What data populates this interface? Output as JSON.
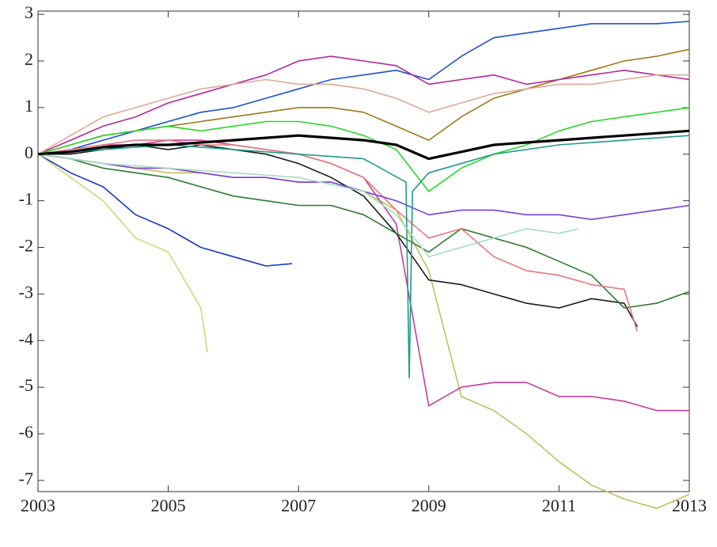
{
  "chart_data": {
    "type": "line",
    "xlim": [
      2003,
      2013
    ],
    "xticks": [
      2003,
      2005,
      2007,
      2009,
      2011,
      2013
    ],
    "ylim": [
      -7.24,
      3.07
    ],
    "yticks": [
      -7,
      -6,
      -5,
      -4,
      -3,
      -2,
      -1,
      0,
      1,
      2,
      3
    ],
    "grid": false,
    "series": [
      {
        "color": "#1f4fd0",
        "width": 1.6,
        "x": [
          2003,
          2003.5,
          2004,
          2004.5,
          2005,
          2005.5,
          2006,
          2006.5,
          2007,
          2007.5,
          2008,
          2008.5,
          2009,
          2009.5,
          2010,
          2010.5,
          2011,
          2011.5,
          2012,
          2012.5,
          2013
        ],
        "values": [
          0,
          0.1,
          0.3,
          0.5,
          0.7,
          0.9,
          1.0,
          1.2,
          1.4,
          1.6,
          1.7,
          1.8,
          1.6,
          2.1,
          2.5,
          2.6,
          2.7,
          2.8,
          2.8,
          2.8,
          2.85
        ]
      },
      {
        "color": "#c0c060",
        "width": 1.6,
        "x": [
          2003,
          2003.5,
          2004,
          2004.5,
          2005,
          2005.5,
          2006,
          2006.5,
          2007,
          2007.5,
          2008,
          2008.5,
          2009,
          2009.5,
          2010,
          2010.5,
          2011,
          2011.5,
          2012,
          2012.5,
          2013
        ],
        "values": [
          0,
          -0.1,
          -0.2,
          -0.3,
          -0.4,
          -0.4,
          -0.5,
          -0.5,
          -0.6,
          -0.6,
          -0.8,
          -1.2,
          -2.5,
          -5.2,
          -5.5,
          -6.0,
          -6.6,
          -7.1,
          -7.4,
          -7.6,
          -7.3
        ]
      },
      {
        "color": "#c83c9c",
        "width": 1.6,
        "x": [
          2003,
          2003.5,
          2004,
          2004.5,
          2005,
          2005.5,
          2006,
          2006.5,
          2007,
          2007.5,
          2008,
          2008.5,
          2009,
          2009.5,
          2010,
          2010.5,
          2011,
          2011.5,
          2012,
          2012.5,
          2013
        ],
        "values": [
          0,
          0.1,
          0.2,
          0.2,
          0.3,
          0.3,
          0.2,
          0.1,
          0,
          -0.2,
          -0.5,
          -1.5,
          -5.4,
          -5.0,
          -4.9,
          -4.9,
          -5.2,
          -5.2,
          -5.3,
          -5.5,
          -5.5
        ]
      },
      {
        "color": "#1434c8",
        "width": 1.6,
        "x": [
          2003,
          2003.5,
          2004,
          2004.5,
          2005,
          2005.5,
          2006,
          2006.5,
          2006.9
        ],
        "values": [
          0,
          -0.4,
          -0.7,
          -1.3,
          -1.6,
          -2.0,
          -2.2,
          -2.4,
          -2.35
        ]
      },
      {
        "color": "#c8dc78",
        "width": 1.6,
        "x": [
          2003,
          2003.5,
          2004,
          2004.5,
          2005,
          2005.5,
          2005.6
        ],
        "values": [
          0,
          -0.5,
          -1.0,
          -1.8,
          -2.1,
          -3.3,
          -4.25
        ]
      },
      {
        "color": "#1a1a1a",
        "width": 1.6,
        "x": [
          2003,
          2003.5,
          2004,
          2004.5,
          2005,
          2005.5,
          2006,
          2006.5,
          2007,
          2007.5,
          2008,
          2008.5,
          2009,
          2009.5,
          2010,
          2010.5,
          2011,
          2011.5,
          2012,
          2012.2
        ],
        "values": [
          0,
          0,
          0.1,
          0.2,
          0.1,
          0.2,
          0.1,
          0,
          -0.2,
          -0.5,
          -0.9,
          -1.7,
          -2.7,
          -2.8,
          -3.0,
          -3.2,
          -3.3,
          -3.1,
          -3.2,
          -3.7
        ]
      },
      {
        "color": "#2e7a2e",
        "width": 1.6,
        "x": [
          2003,
          2003.5,
          2004,
          2004.5,
          2005,
          2005.5,
          2006,
          2006.5,
          2007,
          2007.5,
          2008,
          2008.5,
          2009,
          2009.5,
          2010,
          2010.5,
          2011,
          2011.5,
          2012,
          2012.5,
          2013
        ],
        "values": [
          0,
          -0.1,
          -0.3,
          -0.4,
          -0.5,
          -0.7,
          -0.9,
          -1.0,
          -1.1,
          -1.1,
          -1.3,
          -1.7,
          -2.1,
          -1.6,
          -1.8,
          -2.0,
          -2.3,
          -2.6,
          -3.3,
          -3.2,
          -2.95
        ]
      },
      {
        "color": "#e8787c",
        "width": 1.6,
        "x": [
          2003,
          2003.5,
          2004,
          2004.5,
          2005,
          2005.5,
          2006,
          2006.5,
          2007,
          2007.5,
          2008,
          2008.5,
          2009,
          2009.5,
          2010,
          2010.5,
          2011,
          2011.5,
          2012,
          2012.2
        ],
        "values": [
          0,
          0.1,
          0.2,
          0.3,
          0.3,
          0.2,
          0.2,
          0.1,
          0,
          -0.2,
          -0.5,
          -1.2,
          -1.8,
          -1.6,
          -2.2,
          -2.5,
          -2.6,
          -2.8,
          -2.9,
          -3.8
        ]
      },
      {
        "color": "#a07818",
        "width": 1.6,
        "x": [
          2003,
          2003.5,
          2004,
          2004.5,
          2005,
          2005.5,
          2006,
          2006.5,
          2007,
          2007.5,
          2008,
          2008.5,
          2009,
          2009.5,
          2010,
          2010.5,
          2011,
          2011.5,
          2012,
          2012.5,
          2013
        ],
        "values": [
          0,
          0.2,
          0.4,
          0.5,
          0.6,
          0.7,
          0.8,
          0.9,
          1.0,
          1.0,
          0.9,
          0.6,
          0.3,
          0.8,
          1.2,
          1.4,
          1.6,
          1.8,
          2.0,
          2.1,
          2.25
        ]
      },
      {
        "color": "#b4289c",
        "width": 1.6,
        "x": [
          2003,
          2003.5,
          2004,
          2004.5,
          2005,
          2005.5,
          2006,
          2006.5,
          2007,
          2007.5,
          2008,
          2008.5,
          2009,
          2009.5,
          2010,
          2010.5,
          2011,
          2011.5,
          2012,
          2012.5,
          2013
        ],
        "values": [
          0,
          0.3,
          0.6,
          0.8,
          1.1,
          1.3,
          1.5,
          1.7,
          2.0,
          2.1,
          2.0,
          1.9,
          1.5,
          1.6,
          1.7,
          1.5,
          1.6,
          1.7,
          1.8,
          1.7,
          1.6
        ]
      },
      {
        "color": "#7a3ce0",
        "width": 1.6,
        "x": [
          2003,
          2003.5,
          2004,
          2004.5,
          2005,
          2005.5,
          2006,
          2006.5,
          2007,
          2007.5,
          2008,
          2008.5,
          2009,
          2009.5,
          2010,
          2010.5,
          2011,
          2011.5,
          2012,
          2012.5,
          2013
        ],
        "values": [
          0,
          -0.1,
          -0.2,
          -0.3,
          -0.3,
          -0.4,
          -0.5,
          -0.5,
          -0.6,
          -0.6,
          -0.8,
          -1.0,
          -1.3,
          -1.2,
          -1.2,
          -1.3,
          -1.3,
          -1.4,
          -1.3,
          -1.2,
          -1.1
        ]
      },
      {
        "color": "#28d828",
        "width": 1.6,
        "x": [
          2003,
          2003.5,
          2004,
          2004.5,
          2005,
          2005.5,
          2006,
          2006.5,
          2007,
          2007.5,
          2008,
          2008.5,
          2009,
          2009.5,
          2010,
          2010.5,
          2011,
          2011.5,
          2012,
          2012.5,
          2013
        ],
        "values": [
          0,
          0.2,
          0.4,
          0.5,
          0.6,
          0.5,
          0.6,
          0.7,
          0.7,
          0.6,
          0.4,
          0.1,
          -0.8,
          -0.3,
          0,
          0.2,
          0.5,
          0.7,
          0.8,
          0.9,
          1.0
        ]
      },
      {
        "color": "#209a8c",
        "width": 1.6,
        "x": [
          2003,
          2004,
          2005,
          2006,
          2007,
          2008,
          2008.65,
          2008.7,
          2008.75,
          2009,
          2010,
          2011,
          2012,
          2013
        ],
        "values": [
          0,
          0.1,
          0.2,
          0.1,
          0,
          -0.1,
          -0.6,
          -4.8,
          -0.8,
          -0.4,
          0.0,
          0.2,
          0.3,
          0.4
        ]
      },
      {
        "color": "#e0a898",
        "width": 1.6,
        "x": [
          2003,
          2003.5,
          2004,
          2004.5,
          2005,
          2005.5,
          2006,
          2006.5,
          2007,
          2007.5,
          2008,
          2008.5,
          2009,
          2009.5,
          2010,
          2010.5,
          2011,
          2011.5,
          2012,
          2012.5,
          2013
        ],
        "values": [
          0,
          0.4,
          0.8,
          1.0,
          1.2,
          1.4,
          1.5,
          1.6,
          1.5,
          1.5,
          1.4,
          1.2,
          0.9,
          1.1,
          1.3,
          1.4,
          1.5,
          1.5,
          1.6,
          1.7,
          1.7
        ]
      },
      {
        "color": "#a8dcc0",
        "width": 1.6,
        "x": [
          2003,
          2004,
          2005,
          2006,
          2007,
          2008,
          2008.5,
          2009,
          2009.5,
          2010,
          2010.5,
          2011,
          2011.3
        ],
        "values": [
          0,
          -0.2,
          -0.3,
          -0.4,
          -0.5,
          -0.8,
          -1.3,
          -2.2,
          -2.0,
          -1.8,
          -1.6,
          -1.7,
          -1.6
        ]
      },
      {
        "color": "#000000",
        "width": 3.2,
        "x": [
          2003,
          2003.5,
          2004,
          2004.5,
          2005,
          2005.5,
          2006,
          2006.5,
          2007,
          2007.5,
          2008,
          2008.5,
          2009,
          2009.5,
          2010,
          2010.5,
          2011,
          2011.5,
          2012,
          2012.5,
          2013
        ],
        "values": [
          0,
          0.05,
          0.15,
          0.2,
          0.2,
          0.25,
          0.3,
          0.35,
          0.4,
          0.35,
          0.3,
          0.2,
          -0.1,
          0.05,
          0.2,
          0.25,
          0.3,
          0.35,
          0.4,
          0.45,
          0.5
        ]
      }
    ]
  }
}
